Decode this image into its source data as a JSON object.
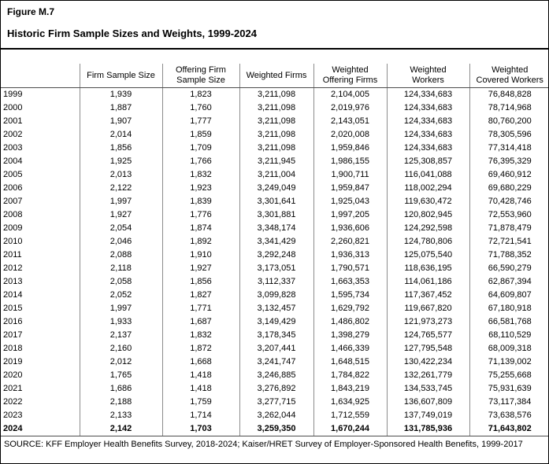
{
  "figure": {
    "label": "Figure M.7",
    "title": "Historic Firm Sample Sizes and Weights, 1999-2024"
  },
  "table": {
    "columns": [
      "",
      "Firm Sample Size",
      "Offering Firm\nSample Size",
      "Weighted Firms",
      "Weighted\nOffering Firms",
      "Weighted\nWorkers",
      "Weighted\nCovered Workers"
    ],
    "rows": [
      {
        "year": "1999",
        "values": [
          "1,939",
          "1,823",
          "3,211,098",
          "2,104,005",
          "124,334,683",
          "76,848,828"
        ],
        "bold": false
      },
      {
        "year": "2000",
        "values": [
          "1,887",
          "1,760",
          "3,211,098",
          "2,019,976",
          "124,334,683",
          "78,714,968"
        ],
        "bold": false
      },
      {
        "year": "2001",
        "values": [
          "1,907",
          "1,777",
          "3,211,098",
          "2,143,051",
          "124,334,683",
          "80,760,200"
        ],
        "bold": false
      },
      {
        "year": "2002",
        "values": [
          "2,014",
          "1,859",
          "3,211,098",
          "2,020,008",
          "124,334,683",
          "78,305,596"
        ],
        "bold": false
      },
      {
        "year": "2003",
        "values": [
          "1,856",
          "1,709",
          "3,211,098",
          "1,959,846",
          "124,334,683",
          "77,314,418"
        ],
        "bold": false
      },
      {
        "year": "2004",
        "values": [
          "1,925",
          "1,766",
          "3,211,945",
          "1,986,155",
          "125,308,857",
          "76,395,329"
        ],
        "bold": false
      },
      {
        "year": "2005",
        "values": [
          "2,013",
          "1,832",
          "3,211,004",
          "1,900,711",
          "116,041,088",
          "69,460,912"
        ],
        "bold": false
      },
      {
        "year": "2006",
        "values": [
          "2,122",
          "1,923",
          "3,249,049",
          "1,959,847",
          "118,002,294",
          "69,680,229"
        ],
        "bold": false
      },
      {
        "year": "2007",
        "values": [
          "1,997",
          "1,839",
          "3,301,641",
          "1,925,043",
          "119,630,472",
          "70,428,746"
        ],
        "bold": false
      },
      {
        "year": "2008",
        "values": [
          "1,927",
          "1,776",
          "3,301,881",
          "1,997,205",
          "120,802,945",
          "72,553,960"
        ],
        "bold": false
      },
      {
        "year": "2009",
        "values": [
          "2,054",
          "1,874",
          "3,348,174",
          "1,936,606",
          "124,292,598",
          "71,878,479"
        ],
        "bold": false
      },
      {
        "year": "2010",
        "values": [
          "2,046",
          "1,892",
          "3,341,429",
          "2,260,821",
          "124,780,806",
          "72,721,541"
        ],
        "bold": false
      },
      {
        "year": "2011",
        "values": [
          "2,088",
          "1,910",
          "3,292,248",
          "1,936,313",
          "125,075,540",
          "71,788,352"
        ],
        "bold": false
      },
      {
        "year": "2012",
        "values": [
          "2,118",
          "1,927",
          "3,173,051",
          "1,790,571",
          "118,636,195",
          "66,590,279"
        ],
        "bold": false
      },
      {
        "year": "2013",
        "values": [
          "2,058",
          "1,856",
          "3,112,337",
          "1,663,353",
          "114,061,186",
          "62,867,394"
        ],
        "bold": false
      },
      {
        "year": "2014",
        "values": [
          "2,052",
          "1,827",
          "3,099,828",
          "1,595,734",
          "117,367,452",
          "64,609,807"
        ],
        "bold": false
      },
      {
        "year": "2015",
        "values": [
          "1,997",
          "1,771",
          "3,132,457",
          "1,629,792",
          "119,667,820",
          "67,180,918"
        ],
        "bold": false
      },
      {
        "year": "2016",
        "values": [
          "1,933",
          "1,687",
          "3,149,429",
          "1,486,802",
          "121,973,273",
          "66,581,768"
        ],
        "bold": false
      },
      {
        "year": "2017",
        "values": [
          "2,137",
          "1,832",
          "3,178,345",
          "1,398,279",
          "124,765,577",
          "68,110,529"
        ],
        "bold": false
      },
      {
        "year": "2018",
        "values": [
          "2,160",
          "1,872",
          "3,207,441",
          "1,466,339",
          "127,795,548",
          "68,009,318"
        ],
        "bold": false
      },
      {
        "year": "2019",
        "values": [
          "2,012",
          "1,668",
          "3,241,747",
          "1,648,515",
          "130,422,234",
          "71,139,002"
        ],
        "bold": false
      },
      {
        "year": "2020",
        "values": [
          "1,765",
          "1,418",
          "3,246,885",
          "1,784,822",
          "132,261,779",
          "75,255,668"
        ],
        "bold": false
      },
      {
        "year": "2021",
        "values": [
          "1,686",
          "1,418",
          "3,276,892",
          "1,843,219",
          "134,533,745",
          "75,931,639"
        ],
        "bold": false
      },
      {
        "year": "2022",
        "values": [
          "2,188",
          "1,759",
          "3,277,715",
          "1,634,925",
          "136,607,809",
          "73,117,384"
        ],
        "bold": false
      },
      {
        "year": "2023",
        "values": [
          "2,133",
          "1,714",
          "3,262,044",
          "1,712,559",
          "137,749,019",
          "73,638,576"
        ],
        "bold": false
      },
      {
        "year": "2024",
        "values": [
          "2,142",
          "1,703",
          "3,259,350",
          "1,670,244",
          "131,785,936",
          "71,643,802"
        ],
        "bold": true
      }
    ]
  },
  "source": "SOURCE: KFF Employer Health Benefits Survey, 2018-2024; Kaiser/HRET Survey of Employer-Sponsored Health Benefits, 1999-2017"
}
